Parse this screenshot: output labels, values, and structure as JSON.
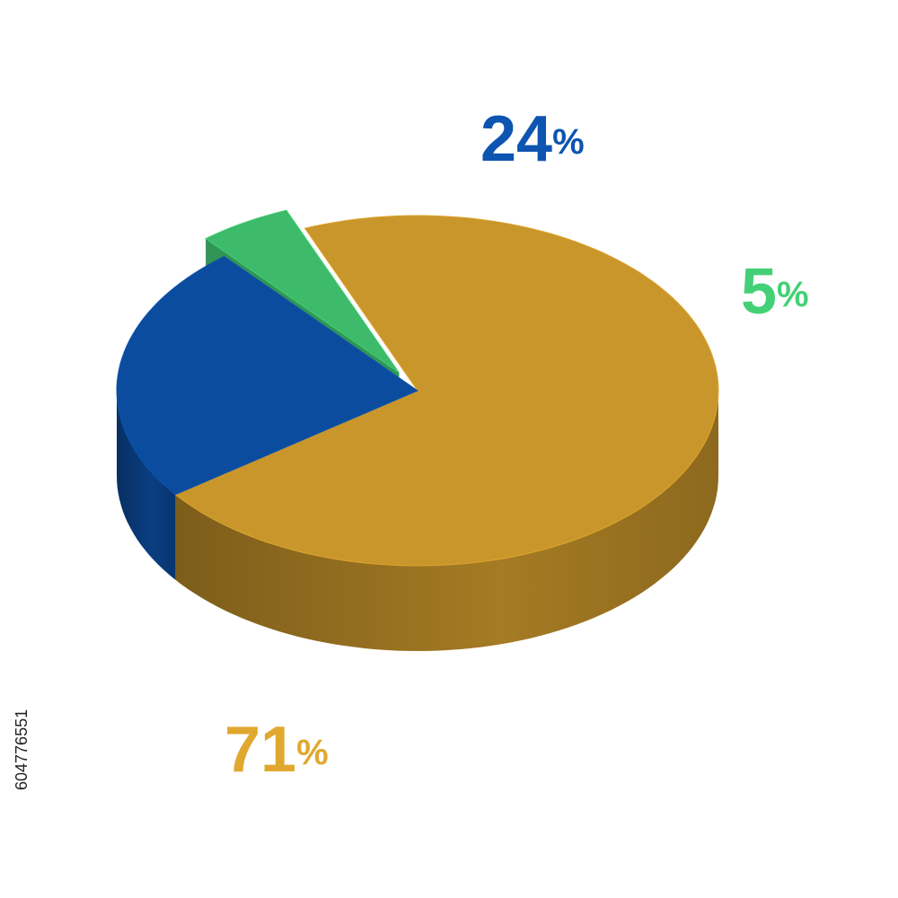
{
  "chart_data": {
    "type": "pie",
    "values": [
      71,
      24,
      5
    ],
    "value_labels": [
      "71%",
      "24%",
      "5%"
    ],
    "colors": [
      "#c9962b",
      "#0c4c9e",
      "#3dba6a"
    ],
    "exploded": [
      false,
      false,
      true
    ]
  },
  "image_id": "604776551"
}
